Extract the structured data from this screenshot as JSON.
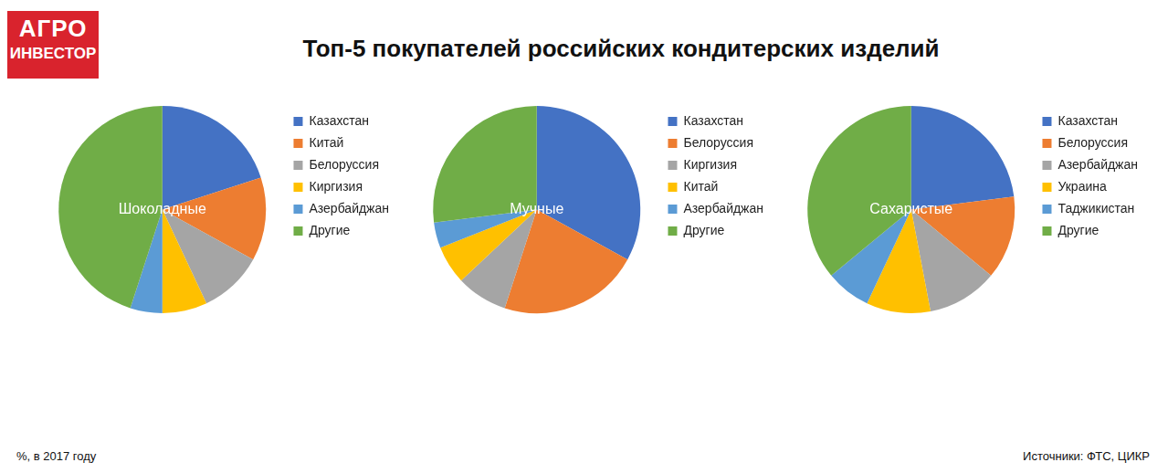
{
  "title": "Топ-5 покупателей российских кондитерских изделий",
  "logo": [
    "АГРО",
    "ИНВЕСТОР"
  ],
  "note": "%, в 2017 году",
  "source": "Источники: ФТС, ЦИКР",
  "chart_data": [
    {
      "type": "pie",
      "title": "Шоколадные",
      "categories": [
        "Казахстан",
        "Китай",
        "Белоруссия",
        "Киргизия",
        "Азербайджан",
        "Другие"
      ],
      "values": [
        20,
        13,
        10,
        7,
        5,
        45
      ],
      "colors": [
        "#4472c4",
        "#ed7d31",
        "#a5a5a5",
        "#ffc000",
        "#5b9bd5",
        "#70ad47"
      ],
      "legend": "right"
    },
    {
      "type": "pie",
      "title": "Мучные",
      "categories": [
        "Казахстан",
        "Белоруссия",
        "Киргизия",
        "Китай",
        "Азербайджан",
        "Другие"
      ],
      "values": [
        33,
        22,
        8,
        6,
        4,
        27
      ],
      "colors": [
        "#4472c4",
        "#ed7d31",
        "#a5a5a5",
        "#ffc000",
        "#5b9bd5",
        "#70ad47"
      ],
      "legend": "right"
    },
    {
      "type": "pie",
      "title": "Сахаристые",
      "categories": [
        "Казахстан",
        "Белоруссия",
        "Азербайджан",
        "Украина",
        "Таджикистан",
        "Другие"
      ],
      "values": [
        23,
        13,
        11,
        10,
        7,
        36
      ],
      "colors": [
        "#4472c4",
        "#ed7d31",
        "#a5a5a5",
        "#ffc000",
        "#5b9bd5",
        "#70ad47"
      ],
      "legend": "right"
    }
  ]
}
